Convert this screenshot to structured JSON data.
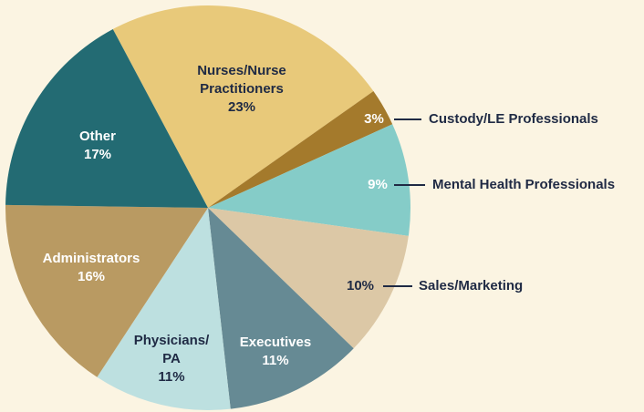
{
  "chart_data": {
    "type": "pie",
    "categories": [
      [
        "Nurses/Nurse",
        "Practitioners"
      ],
      [
        "Custody/LE Professionals"
      ],
      [
        "Mental Health Professionals"
      ],
      [
        "Sales/Marketing"
      ],
      [
        "Executives"
      ],
      [
        "Physicians/",
        "PA"
      ],
      [
        "Administrators"
      ],
      [
        "Other"
      ]
    ],
    "values": [
      23,
      3,
      9,
      10,
      11,
      11,
      16,
      17
    ],
    "value_labels": [
      "23%",
      "3%",
      "9%",
      "10%",
      "11%",
      "11%",
      "16%",
      "17%"
    ],
    "colors": [
      "#e8c97a",
      "#a47a2c",
      "#85ccc8",
      "#dcc8a6",
      "#668a94",
      "#bde0e0",
      "#b99a62",
      "#236b73"
    ]
  }
}
